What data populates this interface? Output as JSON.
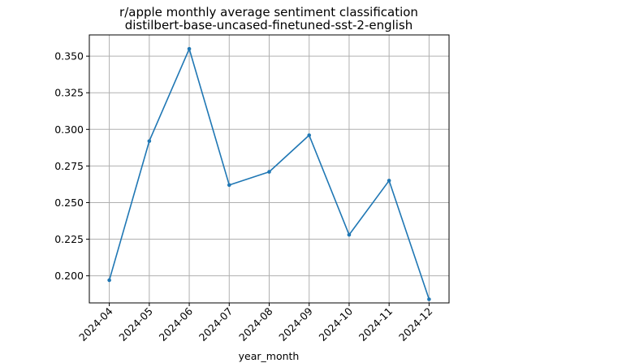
{
  "chart_data": {
    "type": "line",
    "title": "r/apple monthly average sentiment classification",
    "subtitle": "distilbert-base-uncased-finetuned-sst-2-english",
    "xlabel": "year_month",
    "ylabel": "",
    "categories": [
      "2024-04",
      "2024-05",
      "2024-06",
      "2024-07",
      "2024-08",
      "2024-09",
      "2024-10",
      "2024-11",
      "2024-12"
    ],
    "series": [
      {
        "values": [
          0.197,
          0.292,
          0.355,
          0.262,
          0.271,
          0.296,
          0.228,
          0.265,
          0.184
        ]
      }
    ],
    "y_ticks": [
      "0.200",
      "0.225",
      "0.250",
      "0.275",
      "0.300",
      "0.325",
      "0.350"
    ],
    "ylim": [
      0.1815,
      0.3645
    ],
    "grid": true,
    "line_color": "#1f77b4"
  }
}
